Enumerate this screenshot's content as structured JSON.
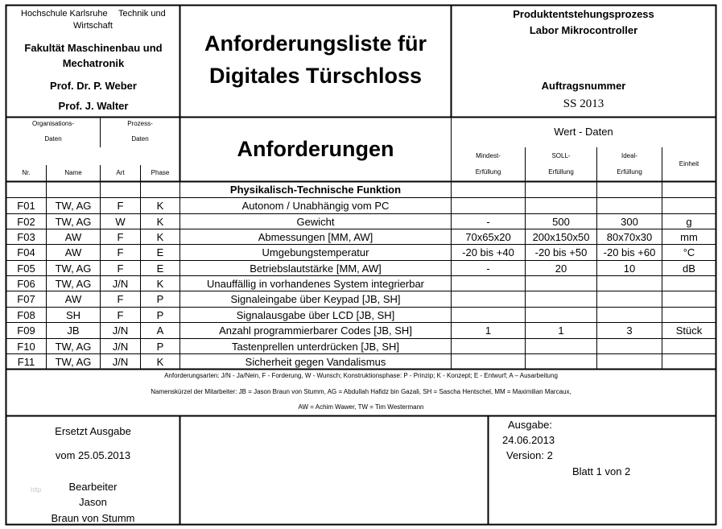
{
  "header": {
    "hochschule": "Hochschule Karlsruhe",
    "technik": "Technik und",
    "wirtschaft": "Wirtschaft",
    "fakultaet_line1": "Fakultät Maschinenbau und",
    "fakultaet_line2": "Mechatronik",
    "prof1": "Prof. Dr. P. Weber",
    "prof2": "Prof. J. Walter",
    "title_line1": "Anforderungsliste für",
    "title_line2": "Digitales Türschloss",
    "process_line1": "Produktentstehungsprozess",
    "process_line2": "Labor Mikrocontroller",
    "order_label": "Auftragsnummer",
    "order_value": "SS 2013"
  },
  "columns": {
    "org_line1": "Organisations-",
    "org_line2": "Daten",
    "proc_line1": "Prozess-",
    "proc_line2": "Daten",
    "nr": "Nr.",
    "name": "Name",
    "art": "Art",
    "phase": "Phase",
    "requirements": "Anforderungen",
    "value_data": "Wert - Daten",
    "min_line1": "Mindest-",
    "min_line2": "Erfüllung",
    "soll_line1": "SOLL-",
    "soll_line2": "Erfüllung",
    "ideal_line1": "Ideal-",
    "ideal_line2": "Erfüllung",
    "unit": "Einheit"
  },
  "section_title": "Physikalisch-Technische Funktion",
  "rows": [
    {
      "nr": "F01",
      "name": "TW, AG",
      "art": "F",
      "phase": "K",
      "text": "Autonom / Unabhängig vom PC",
      "min": "",
      "soll": "",
      "ideal": "",
      "unit": ""
    },
    {
      "nr": "F02",
      "name": "TW, AG",
      "art": "W",
      "phase": "K",
      "text": "Gewicht",
      "min": "-",
      "soll": "500",
      "ideal": "300",
      "unit": "g"
    },
    {
      "nr": "F03",
      "name": "AW",
      "art": "F",
      "phase": "K",
      "text": "Abmessungen [MM, AW]",
      "min": "70x65x20",
      "soll": "200x150x50",
      "ideal": "80x70x30",
      "unit": "mm"
    },
    {
      "nr": "F04",
      "name": "AW",
      "art": "F",
      "phase": "E",
      "text": "Umgebungstemperatur",
      "min": "-20 bis +40",
      "soll": "-20 bis +50",
      "ideal": "-20 bis +60",
      "unit": "°C"
    },
    {
      "nr": "F05",
      "name": "TW, AG",
      "art": "F",
      "phase": "E",
      "text": "Betriebslautstärke [MM, AW]",
      "min": "-",
      "soll": "20",
      "ideal": "10",
      "unit": "dB"
    },
    {
      "nr": "F06",
      "name": "TW, AG",
      "art": "J/N",
      "phase": "K",
      "text": "Unauffällig in vorhandenes System integrierbar",
      "min": "",
      "soll": "",
      "ideal": "",
      "unit": ""
    },
    {
      "nr": "F07",
      "name": "AW",
      "art": "F",
      "phase": "P",
      "text": "Signaleingabe über Keypad [JB, SH]",
      "min": "",
      "soll": "",
      "ideal": "",
      "unit": ""
    },
    {
      "nr": "F08",
      "name": "SH",
      "art": "F",
      "phase": "P",
      "text": "Signalausgabe über LCD [JB, SH]",
      "min": "",
      "soll": "",
      "ideal": "",
      "unit": ""
    },
    {
      "nr": "F09",
      "name": "JB",
      "art": "J/N",
      "phase": "A",
      "text": "Anzahl programmierbarer Codes [JB, SH]",
      "min": "1",
      "soll": "1",
      "ideal": "3",
      "unit": "Stück"
    },
    {
      "nr": "F10",
      "name": "TW, AG",
      "art": "J/N",
      "phase": "P",
      "text": "Tastenprellen unterdrücken [JB, SH]",
      "min": "",
      "soll": "",
      "ideal": "",
      "unit": ""
    },
    {
      "nr": "F11",
      "name": "TW, AG",
      "art": "J/N",
      "phase": "K",
      "text": "Sicherheit gegen Vandalismus",
      "min": "",
      "soll": "",
      "ideal": "",
      "unit": ""
    }
  ],
  "legend": {
    "line1": "Anforderungsarten: J/N - Ja/Nein, F - Forderung, W - Wunsch; Konstruktionsphase: P - Prinzip; K - Konzept; E - Entwurf; A – Ausarbeitung",
    "line2": "Namenskürzel der Mitarbeiter: JB = Jason Braun von Stumm,  AG = Abdullah Hafidz bin Gazali, SH = Sascha Hentschel, MM = Maximilian Marcaux,",
    "line3": "AW = Achim Wawer, TW = Tim Westermann"
  },
  "footer": {
    "replaces": "Ersetzt Ausgabe",
    "from_date": "vom 25.05.2013",
    "editor_label": "Bearbeiter",
    "editor_first": "Jason",
    "editor_last": "Braun von Stumm",
    "faint_mark": "http",
    "issue_label": "Ausgabe:",
    "issue_date": "24.06.2013",
    "version": "Version: 2",
    "sheet": "Blatt 1 von 2"
  }
}
